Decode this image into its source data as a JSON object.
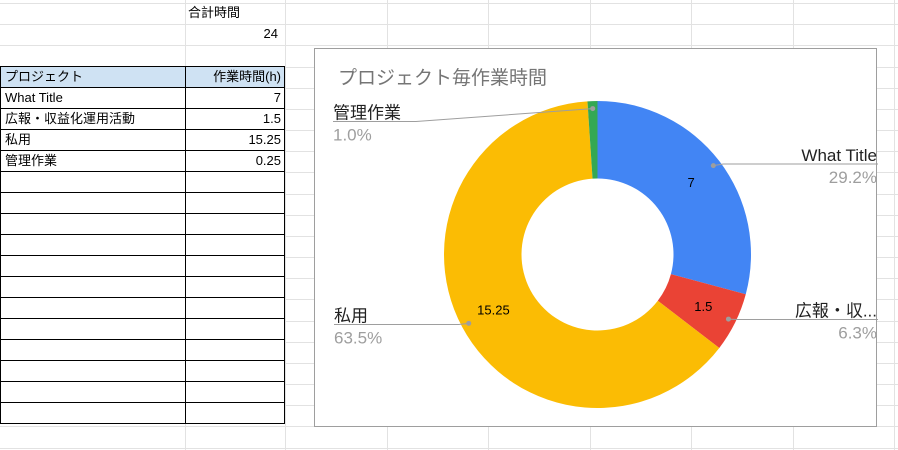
{
  "sheet": {
    "total_label": "合計時間",
    "total_value": "24"
  },
  "table": {
    "headers": [
      "プロジェクト",
      "作業時間(h)"
    ],
    "header_bg": "#cfe2f3",
    "rows": [
      {
        "project": "What Title",
        "hours": "7"
      },
      {
        "project": "広報・収益化運用活動",
        "hours": "1.5"
      },
      {
        "project": "私用",
        "hours": "15.25"
      },
      {
        "project": "管理作業",
        "hours": "0.25"
      }
    ],
    "empty_row_count": 12
  },
  "chart_data": {
    "type": "pie",
    "title": "プロジェクト毎作業時間",
    "donut_hole": 0.5,
    "legend_position": "labeled-callouts",
    "slices": [
      {
        "label": "What Title",
        "value": 7,
        "percent_label": "29.2%",
        "value_label": "7",
        "color": "#4285f4"
      },
      {
        "label": "広報・収...",
        "value": 1.5,
        "percent_label": "6.3%",
        "value_label": "1.5",
        "color": "#ea4335"
      },
      {
        "label": "私用",
        "value": 15.25,
        "percent_label": "63.5%",
        "value_label": "15.25",
        "color": "#fbbc04"
      },
      {
        "label": "管理作業",
        "value": 0.25,
        "percent_label": "1.0%",
        "value_label": "",
        "color": "#34a853"
      }
    ]
  }
}
